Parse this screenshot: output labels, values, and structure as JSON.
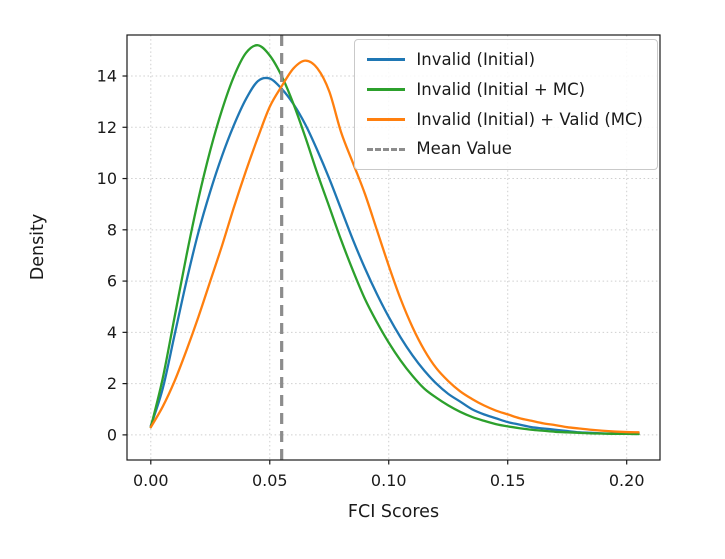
{
  "chart_data": {
    "type": "line",
    "subtype": "kde-density",
    "title": "",
    "xlabel": "FCI Scores",
    "ylabel": "Density",
    "xlim": [
      -0.01,
      0.214
    ],
    "ylim": [
      -0.98,
      15.6
    ],
    "xticks": [
      0.0,
      0.05,
      0.1,
      0.15,
      0.2
    ],
    "xtick_labels": [
      "0.00",
      "0.05",
      "0.10",
      "0.15",
      "0.20"
    ],
    "yticks": [
      0,
      2,
      4,
      6,
      8,
      10,
      12,
      14
    ],
    "ytick_labels": [
      "0",
      "2",
      "4",
      "6",
      "8",
      "10",
      "12",
      "14"
    ],
    "grid": true,
    "grid_style": "dotted",
    "legend_position": "upper right",
    "mean_line": {
      "label": "Mean Value",
      "x": 0.055,
      "color": "#8c8c8c",
      "dash": true
    },
    "x": [
      0,
      0.005,
      0.01,
      0.015,
      0.02,
      0.025,
      0.03,
      0.035,
      0.04,
      0.045,
      0.05,
      0.055,
      0.06,
      0.065,
      0.07,
      0.075,
      0.08,
      0.085,
      0.09,
      0.095,
      0.1,
      0.105,
      0.11,
      0.115,
      0.12,
      0.125,
      0.13,
      0.135,
      0.14,
      0.145,
      0.15,
      0.155,
      0.16,
      0.165,
      0.17,
      0.175,
      0.18,
      0.185,
      0.19,
      0.195,
      0.2,
      0.205
    ],
    "series": [
      {
        "name": "Invalid (Initial)",
        "color": "#1f77b4",
        "values": [
          0.35,
          1.8,
          3.9,
          6.0,
          7.9,
          9.5,
          10.9,
          12.1,
          13.1,
          13.8,
          13.9,
          13.5,
          12.9,
          12.1,
          11.1,
          10.0,
          8.8,
          7.6,
          6.5,
          5.5,
          4.6,
          3.8,
          3.1,
          2.5,
          2.0,
          1.6,
          1.3,
          1.0,
          0.8,
          0.65,
          0.5,
          0.4,
          0.3,
          0.25,
          0.2,
          0.15,
          0.1,
          0.08,
          0.06,
          0.05,
          0.04,
          0.04
        ]
      },
      {
        "name": "Invalid (Initial + MC)",
        "color": "#2ca02c",
        "values": [
          0.3,
          2.2,
          4.6,
          7.0,
          9.2,
          11.1,
          12.7,
          14.0,
          14.9,
          15.2,
          14.8,
          14.0,
          12.9,
          11.6,
          10.2,
          8.9,
          7.6,
          6.4,
          5.3,
          4.4,
          3.6,
          2.9,
          2.3,
          1.8,
          1.45,
          1.15,
          0.9,
          0.7,
          0.55,
          0.42,
          0.33,
          0.26,
          0.2,
          0.16,
          0.12,
          0.1,
          0.08,
          0.06,
          0.05,
          0.04,
          0.04,
          0.03
        ]
      },
      {
        "name": "Invalid (Initial) + Valid (MC)",
        "color": "#ff7f0e",
        "values": [
          0.3,
          1.1,
          2.1,
          3.3,
          4.6,
          6.0,
          7.4,
          8.9,
          10.3,
          11.6,
          12.8,
          13.6,
          14.3,
          14.6,
          14.3,
          13.4,
          11.8,
          10.6,
          9.4,
          8.0,
          6.6,
          5.3,
          4.2,
          3.3,
          2.6,
          2.1,
          1.7,
          1.4,
          1.15,
          0.95,
          0.8,
          0.65,
          0.55,
          0.45,
          0.38,
          0.3,
          0.25,
          0.2,
          0.16,
          0.13,
          0.11,
          0.1
        ]
      }
    ]
  }
}
